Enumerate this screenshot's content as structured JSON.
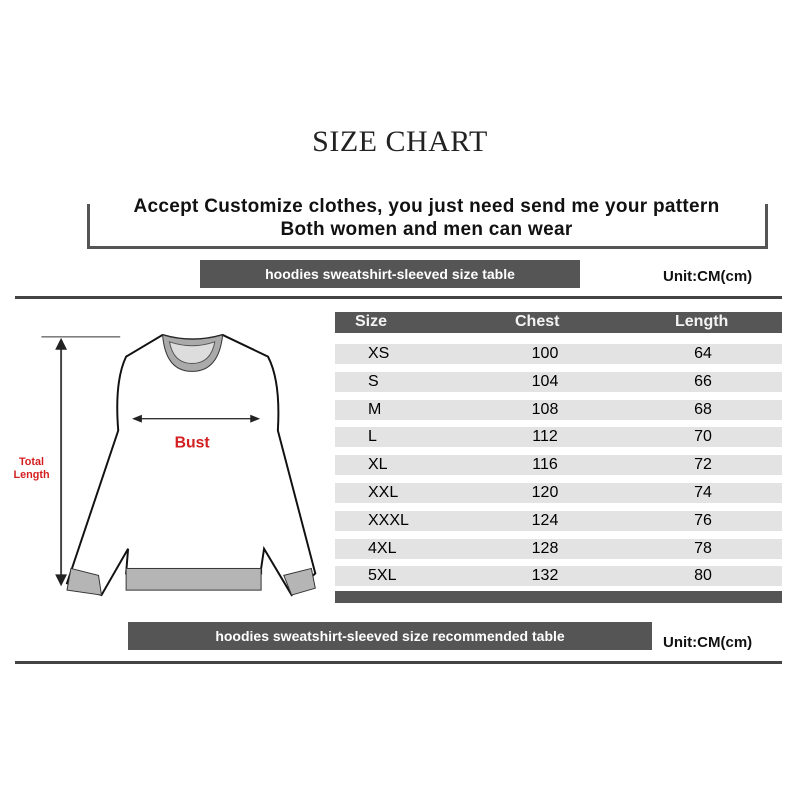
{
  "title": "SIZE CHART",
  "banner": {
    "line1": "Accept Customize clothes, you just need send me your pattern",
    "line2": "Both women and men can wear"
  },
  "table_caption": "hoodies sweatshirt-sleeved size  table",
  "recommended_caption": "hoodies sweatshirt-sleeved size recommended table",
  "unit": "Unit:CM(cm)",
  "diagram": {
    "total_length": [
      "Total",
      "Length"
    ],
    "bust": "Bust"
  },
  "table": {
    "headers": [
      "Size",
      "Chest",
      "Length"
    ],
    "rows": [
      [
        "XS",
        "100",
        "64"
      ],
      [
        "S",
        "104",
        "66"
      ],
      [
        "M",
        "108",
        "68"
      ],
      [
        "L",
        "112",
        "70"
      ],
      [
        "XL",
        "116",
        "72"
      ],
      [
        "XXL",
        "120",
        "74"
      ],
      [
        "XXXL",
        "124",
        "76"
      ],
      [
        "4XL",
        "128",
        "78"
      ],
      [
        "5XL",
        "132",
        "80"
      ]
    ]
  },
  "colors": {
    "bar": "#555555",
    "row": "#e3e3e3",
    "label": "#d42020"
  }
}
